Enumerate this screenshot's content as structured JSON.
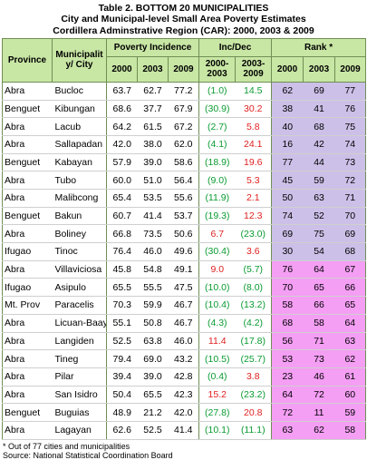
{
  "title": "Table 2.  BOTTOM 20 MUNICIPALITIES",
  "subtitle1": "City and Municipal-level Small Area Poverty Estimates",
  "subtitle2": "Cordillera Adminstrative Region (CAR): 2000, 2003 & 2009",
  "headers": {
    "province": "Province",
    "city": "Municipalit y/ City",
    "poverty": "Poverty Incidence",
    "incdec": "Inc/Dec",
    "rank": "Rank *",
    "y2000": "2000",
    "y2003": "2003",
    "y2009": "2009",
    "c1": "2000-2003",
    "c2": "2003-2009",
    "r2000": "2000",
    "r2003": "2003",
    "r2009": "2009"
  },
  "rows": [
    {
      "province": "Abra",
      "city": "Bucloc",
      "p2000": "63.7",
      "p2003": "62.7",
      "p2009": "77.2",
      "c1": "(1.0)",
      "c2": "14.5",
      "r1": "62",
      "r2": "69",
      "r3": "77",
      "c1color": "g",
      "c2color": "g",
      "hl": false
    },
    {
      "province": "Benguet",
      "city": "Kibungan",
      "p2000": "68.6",
      "p2003": "37.7",
      "p2009": "67.9",
      "c1": "(30.9)",
      "c2": "30.2",
      "r1": "38",
      "r2": "41",
      "r3": "76",
      "c1color": "g",
      "c2color": "r",
      "hl": false
    },
    {
      "province": "Abra",
      "city": "Lacub",
      "p2000": "64.2",
      "p2003": "61.5",
      "p2009": "67.2",
      "c1": "(2.7)",
      "c2": "5.8",
      "r1": "40",
      "r2": "68",
      "r3": "75",
      "c1color": "g",
      "c2color": "r",
      "hl": false
    },
    {
      "province": "Abra",
      "city": "Sallapadan",
      "p2000": "42.0",
      "p2003": "38.0",
      "p2009": "62.0",
      "c1": "(4.1)",
      "c2": "24.1",
      "r1": "16",
      "r2": "42",
      "r3": "74",
      "c1color": "g",
      "c2color": "r",
      "hl": false
    },
    {
      "province": "Benguet",
      "city": "Kabayan",
      "p2000": "57.9",
      "p2003": "39.0",
      "p2009": "58.6",
      "c1": "(18.9)",
      "c2": "19.6",
      "r1": "77",
      "r2": "44",
      "r3": "73",
      "c1color": "g",
      "c2color": "r",
      "hl": false
    },
    {
      "province": "Abra",
      "city": "Tubo",
      "p2000": "60.0",
      "p2003": "51.0",
      "p2009": "56.4",
      "c1": "(9.0)",
      "c2": "5.3",
      "r1": "45",
      "r2": "59",
      "r3": "72",
      "c1color": "g",
      "c2color": "r",
      "hl": false
    },
    {
      "province": "Abra",
      "city": "Malibcong",
      "p2000": "65.4",
      "p2003": "53.5",
      "p2009": "55.6",
      "c1": "(11.9)",
      "c2": "2.1",
      "r1": "50",
      "r2": "63",
      "r3": "71",
      "c1color": "g",
      "c2color": "r",
      "hl": false
    },
    {
      "province": "Benguet",
      "city": "Bakun",
      "p2000": "60.7",
      "p2003": "41.4",
      "p2009": "53.7",
      "c1": "(19.3)",
      "c2": "12.3",
      "r1": "74",
      "r2": "52",
      "r3": "70",
      "c1color": "g",
      "c2color": "r",
      "hl": false
    },
    {
      "province": "Abra",
      "city": "Boliney",
      "p2000": "66.8",
      "p2003": "73.5",
      "p2009": "50.6",
      "c1": "6.7",
      "c2": "(23.0)",
      "r1": "69",
      "r2": "75",
      "r3": "69",
      "c1color": "r",
      "c2color": "g",
      "hl": false
    },
    {
      "province": "Ifugao",
      "city": "Tinoc",
      "p2000": "76.4",
      "p2003": "46.0",
      "p2009": "49.6",
      "c1": "(30.4)",
      "c2": "3.6",
      "r1": "30",
      "r2": "54",
      "r3": "68",
      "c1color": "g",
      "c2color": "r",
      "hl": false
    },
    {
      "province": "Abra",
      "city": "Villaviciosa",
      "p2000": "45.8",
      "p2003": "54.8",
      "p2009": "49.1",
      "c1": "9.0",
      "c2": "(5.7)",
      "r1": "76",
      "r2": "64",
      "r3": "67",
      "c1color": "r",
      "c2color": "g",
      "hl": true
    },
    {
      "province": "Ifugao",
      "city": "Asipulo",
      "p2000": "65.5",
      "p2003": "55.5",
      "p2009": "47.5",
      "c1": "(10.0)",
      "c2": "(8.0)",
      "r1": "70",
      "r2": "65",
      "r3": "66",
      "c1color": "g",
      "c2color": "g",
      "hl": true
    },
    {
      "province": "Mt. Prov",
      "city": "Paracelis",
      "p2000": "70.3",
      "p2003": "59.9",
      "p2009": "46.7",
      "c1": "(10.4)",
      "c2": "(13.2)",
      "r1": "58",
      "r2": "66",
      "r3": "65",
      "c1color": "g",
      "c2color": "g",
      "hl": true
    },
    {
      "province": "Abra",
      "city": "Licuan-Baay",
      "p2000": "55.1",
      "p2003": "50.8",
      "p2009": "46.7",
      "c1": "(4.3)",
      "c2": "(4.2)",
      "r1": "68",
      "r2": "58",
      "r3": "64",
      "c1color": "g",
      "c2color": "g",
      "hl": true
    },
    {
      "province": "Abra",
      "city": "Langiden",
      "p2000": "52.5",
      "p2003": "63.8",
      "p2009": "46.0",
      "c1": "11.4",
      "c2": "(17.8)",
      "r1": "56",
      "r2": "71",
      "r3": "63",
      "c1color": "r",
      "c2color": "g",
      "hl": true
    },
    {
      "province": "Abra",
      "city": "Tineg",
      "p2000": "79.4",
      "p2003": "69.0",
      "p2009": "43.2",
      "c1": "(10.5)",
      "c2": "(25.7)",
      "r1": "53",
      "r2": "73",
      "r3": "62",
      "c1color": "g",
      "c2color": "g",
      "hl": true
    },
    {
      "province": "Abra",
      "city": "Pilar",
      "p2000": "39.4",
      "p2003": "39.0",
      "p2009": "42.8",
      "c1": "(0.4)",
      "c2": "3.8",
      "r1": "23",
      "r2": "46",
      "r3": "61",
      "c1color": "g",
      "c2color": "r",
      "hl": true
    },
    {
      "province": "Abra",
      "city": "San Isidro",
      "p2000": "50.4",
      "p2003": "65.5",
      "p2009": "42.3",
      "c1": "15.2",
      "c2": "(23.2)",
      "r1": "64",
      "r2": "72",
      "r3": "60",
      "c1color": "r",
      "c2color": "g",
      "hl": true
    },
    {
      "province": "Benguet",
      "city": "Buguias",
      "p2000": "48.9",
      "p2003": "21.2",
      "p2009": "42.0",
      "c1": "(27.8)",
      "c2": "20.8",
      "r1": "72",
      "r2": "11",
      "r3": "59",
      "c1color": "g",
      "c2color": "r",
      "hl": true
    },
    {
      "province": "Abra",
      "city": "Lagayan",
      "p2000": "62.6",
      "p2003": "52.5",
      "p2009": "41.4",
      "c1": "(10.1)",
      "c2": "(11.1)",
      "r1": "63",
      "r2": "62",
      "r3": "58",
      "c1color": "g",
      "c2color": "g",
      "hl": true
    }
  ],
  "footnote1": "* Out of 77 cities and municipalities",
  "footnote2": "Source: National Statistical Coordination Board"
}
